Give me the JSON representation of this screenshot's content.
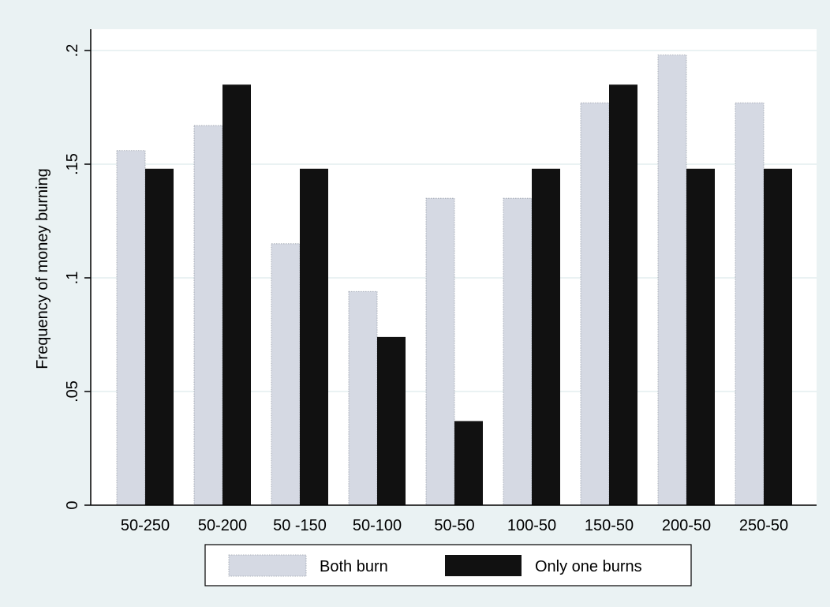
{
  "chart_data": {
    "type": "bar",
    "title": "",
    "xlabel": "",
    "ylabel": "Frequency of money burning",
    "ylim": [
      0,
      0.21
    ],
    "yticks": [
      0,
      0.05,
      0.1,
      0.15,
      0.2
    ],
    "ytick_labels": [
      "0",
      ".05",
      ".1",
      ".15",
      ".2"
    ],
    "grid": true,
    "legend_position": "bottom",
    "categories": [
      "50-250",
      "50-200",
      "50 -150",
      "50-100",
      "50-50",
      "100-50",
      "150-50",
      "200-50",
      "250-50"
    ],
    "series": [
      {
        "name": "Both burn",
        "color": "#d5d9e3",
        "values": [
          0.156,
          0.167,
          0.115,
          0.094,
          0.135,
          0.135,
          0.177,
          0.198,
          0.177
        ]
      },
      {
        "name": "Only one burns",
        "color": "#111111",
        "values": [
          0.148,
          0.185,
          0.148,
          0.074,
          0.037,
          0.148,
          0.185,
          0.148,
          0.148
        ]
      }
    ]
  },
  "colors": {
    "background": "#eaf2f3",
    "plot_area": "#ffffff",
    "grid": "#eaf2f3"
  }
}
